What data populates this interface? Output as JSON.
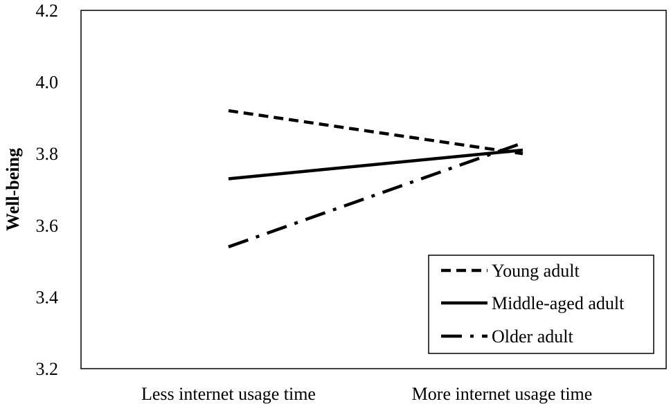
{
  "chart_data": {
    "type": "line",
    "title": "",
    "xlabel": "",
    "ylabel": "Well-being",
    "categories": [
      "Less internet usage time",
      "More internet usage time"
    ],
    "ylim": [
      3.2,
      4.2
    ],
    "yticks": [
      "3.2",
      "3.4",
      "3.6",
      "3.8",
      "4.0",
      "4.2"
    ],
    "grid": false,
    "legend_position": "bottom-right",
    "series": [
      {
        "name": "Young adult",
        "values": [
          3.92,
          3.8
        ],
        "style": "dashed",
        "color": "#000000"
      },
      {
        "name": "Middle-aged adult",
        "values": [
          3.73,
          3.81
        ],
        "style": "solid",
        "color": "#000000"
      },
      {
        "name": "Older adult",
        "values": [
          3.54,
          3.83
        ],
        "style": "dash-dot",
        "color": "#000000"
      }
    ]
  }
}
